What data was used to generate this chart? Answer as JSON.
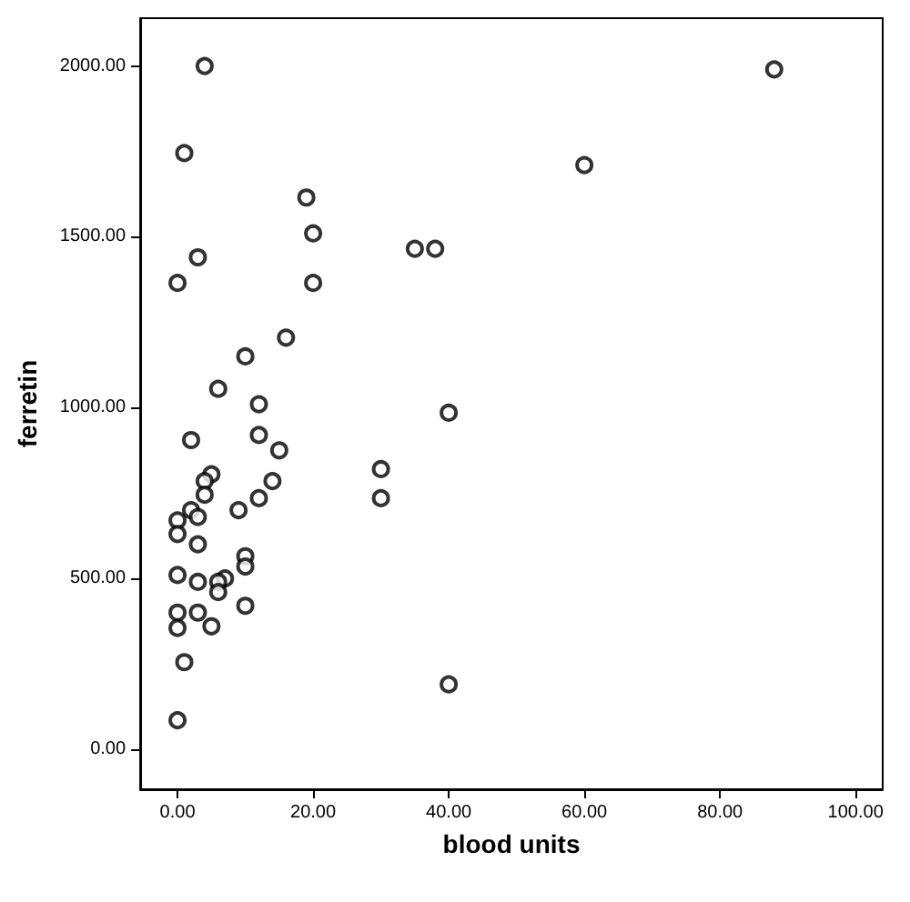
{
  "chart_data": {
    "type": "scatter",
    "xlabel": "blood units",
    "ylabel": "ferretin",
    "marker": "circle",
    "grid": false,
    "xlim": [
      -5.5,
      104
    ],
    "ylim": [
      -117,
      2140
    ],
    "xticks": [
      {
        "value": 0,
        "label": "0.00"
      },
      {
        "value": 20,
        "label": "20.00"
      },
      {
        "value": 40,
        "label": "40.00"
      },
      {
        "value": 60,
        "label": "60.00"
      },
      {
        "value": 80,
        "label": "80.00"
      },
      {
        "value": 100,
        "label": "100.00"
      }
    ],
    "yticks": [
      {
        "value": 0,
        "label": "0.00"
      },
      {
        "value": 500,
        "label": "500.00"
      },
      {
        "value": 1000,
        "label": "1000.00"
      },
      {
        "value": 1500,
        "label": "1500.00"
      },
      {
        "value": 2000,
        "label": "2000.00"
      }
    ],
    "series": [
      {
        "color": "#000000",
        "x": [
          4,
          88,
          1,
          19,
          20,
          60,
          3,
          0,
          20,
          16,
          10,
          6,
          12,
          2,
          12,
          15,
          30,
          5,
          4,
          14,
          4,
          12,
          30,
          2,
          9,
          3,
          0,
          0,
          3,
          10,
          10,
          0,
          3,
          7,
          6,
          6,
          0,
          3,
          10,
          0,
          5,
          1,
          0,
          40,
          40,
          35,
          38
        ],
        "values": [
          2000,
          1990,
          1745,
          1615,
          1510,
          1710,
          1440,
          1365,
          1365,
          1205,
          1150,
          1055,
          1010,
          905,
          920,
          875,
          820,
          805,
          785,
          785,
          745,
          735,
          735,
          700,
          700,
          680,
          670,
          630,
          600,
          565,
          535,
          510,
          490,
          500,
          490,
          460,
          400,
          400,
          420,
          355,
          360,
          255,
          85,
          985,
          190,
          1465,
          1465
        ]
      }
    ]
  }
}
